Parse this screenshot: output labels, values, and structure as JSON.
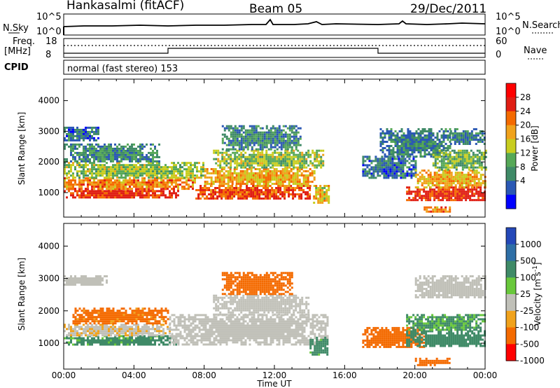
{
  "header": {
    "station": "Hankasalmi (fitACF)",
    "beam": "Beam 05",
    "date": "29/Dec/2011"
  },
  "summary_panel": {
    "nsky_label": "N.Sky",
    "nsky_ticks": [
      "10^5",
      "10^0"
    ],
    "nsearch_label": "N.Search",
    "nsearch_ticks": [
      "10^5",
      "10^0"
    ],
    "freq_label_line1": "Freq.",
    "freq_label_line2": "[MHz]",
    "freq_ticks": [
      "18",
      "8"
    ],
    "nave_label": "Nave",
    "nave_ticks": [
      "60",
      "0"
    ],
    "cpid_label": "CPID",
    "cpid_value": "normal (fast stereo) 153"
  },
  "colors": {
    "power_scale": [
      "#0000ff",
      "#2b58b4",
      "#3f8a67",
      "#56a857",
      "#c8cd1f",
      "#f0a21c",
      "#f46a00",
      "#e01e14",
      "#ff0000"
    ],
    "velocity_scale": [
      "#2448b8",
      "#2e6fa6",
      "#3f8a67",
      "#69c83b",
      "#c0c0b8",
      "#f0a21c",
      "#f46a00",
      "#ff0000"
    ]
  },
  "chart_data": [
    {
      "type": "heatmap",
      "title": "",
      "xlabel": "",
      "ylabel": "Slant Range [km]",
      "xlim": [
        0,
        24
      ],
      "ylim": [
        200,
        4700
      ],
      "x_ticks": [
        "00:00",
        "04:00",
        "08:00",
        "12:00",
        "16:00",
        "20:00",
        "00:00"
      ],
      "y_ticks": [
        "1000",
        "2000",
        "3000",
        "4000"
      ],
      "colorbar": {
        "label": "Power [dB]",
        "ticks": [
          "28",
          "24",
          "20",
          "16",
          "12",
          "8",
          "4"
        ]
      },
      "regions": [
        {
          "t0": 0.0,
          "t1": 6.5,
          "r0": 850,
          "r1": 1150,
          "value": 30
        },
        {
          "t0": 0.0,
          "t1": 7.5,
          "r0": 1150,
          "r1": 1500,
          "value": 24
        },
        {
          "t0": 0.0,
          "t1": 8.0,
          "r0": 1500,
          "r1": 2000,
          "value": 16
        },
        {
          "t0": 0.0,
          "t1": 5.5,
          "r0": 2000,
          "r1": 2600,
          "value": 10
        },
        {
          "t0": 0.0,
          "t1": 2.0,
          "r0": 2700,
          "r1": 3150,
          "value": 8
        },
        {
          "t0": 7.5,
          "t1": 14.0,
          "r0": 800,
          "r1": 1250,
          "value": 28
        },
        {
          "t0": 8.0,
          "t1": 14.3,
          "r0": 1250,
          "r1": 1800,
          "value": 22
        },
        {
          "t0": 8.5,
          "t1": 14.8,
          "r0": 1800,
          "r1": 2400,
          "value": 16
        },
        {
          "t0": 9.0,
          "t1": 13.5,
          "r0": 2400,
          "r1": 3200,
          "value": 10
        },
        {
          "t0": 14.2,
          "t1": 15.1,
          "r0": 700,
          "r1": 1250,
          "value": 20
        },
        {
          "t0": 17.0,
          "t1": 20.0,
          "r0": 1500,
          "r1": 2200,
          "value": 8
        },
        {
          "t0": 18.0,
          "t1": 22.0,
          "r0": 2200,
          "r1": 3100,
          "value": 9
        },
        {
          "t0": 19.5,
          "t1": 24.0,
          "r0": 750,
          "r1": 1200,
          "value": 30
        },
        {
          "t0": 20.0,
          "t1": 24.0,
          "r0": 1200,
          "r1": 1750,
          "value": 22
        },
        {
          "t0": 21.0,
          "t1": 24.0,
          "r0": 1750,
          "r1": 2400,
          "value": 14
        },
        {
          "t0": 22.0,
          "t1": 24.0,
          "r0": 2600,
          "r1": 3100,
          "value": 9
        },
        {
          "t0": 20.5,
          "t1": 22.0,
          "r0": 350,
          "r1": 550,
          "value": 24
        }
      ]
    },
    {
      "type": "heatmap",
      "title": "",
      "xlabel": "Time UT",
      "ylabel": "Slant Range [km]",
      "xlim": [
        0,
        24
      ],
      "ylim": [
        200,
        4700
      ],
      "x_ticks": [
        "00:00",
        "04:00",
        "08:00",
        "12:00",
        "16:00",
        "20:00",
        "00:00"
      ],
      "y_ticks": [
        "1000",
        "2000",
        "3000",
        "4000"
      ],
      "colorbar": {
        "label": "Velocity [m s^-1]",
        "ticks": [
          "1000",
          "500",
          "100",
          "25",
          "-25",
          "-100",
          "-500",
          "-1000"
        ]
      },
      "regions": [
        {
          "t0": 0.0,
          "t1": 6.5,
          "r0": 950,
          "r1": 1250,
          "value": 150
        },
        {
          "t0": 0.0,
          "t1": 6.0,
          "r0": 1250,
          "r1": 1600,
          "value": -20
        },
        {
          "t0": 0.5,
          "t1": 6.0,
          "r0": 1600,
          "r1": 2100,
          "value": -150
        },
        {
          "t0": 0.0,
          "t1": 2.5,
          "r0": 2800,
          "r1": 3100,
          "value": 0
        },
        {
          "t0": 6.0,
          "t1": 15.0,
          "r0": 950,
          "r1": 1900,
          "value": 0
        },
        {
          "t0": 8.5,
          "t1": 14.0,
          "r0": 1900,
          "r1": 2500,
          "value": 0
        },
        {
          "t0": 9.0,
          "t1": 13.0,
          "r0": 2500,
          "r1": 3200,
          "value": -200
        },
        {
          "t0": 14.0,
          "t1": 15.0,
          "r0": 650,
          "r1": 1200,
          "value": 150
        },
        {
          "t0": 17.0,
          "t1": 20.5,
          "r0": 900,
          "r1": 1500,
          "value": -300
        },
        {
          "t0": 19.5,
          "t1": 24.0,
          "r0": 900,
          "r1": 1400,
          "value": 200
        },
        {
          "t0": 19.5,
          "t1": 24.0,
          "r0": 1400,
          "r1": 1900,
          "value": 120
        },
        {
          "t0": 20.0,
          "t1": 24.0,
          "r0": 2400,
          "r1": 3100,
          "value": 0
        },
        {
          "t0": 20.0,
          "t1": 22.0,
          "r0": 350,
          "r1": 550,
          "value": -300
        }
      ]
    }
  ]
}
